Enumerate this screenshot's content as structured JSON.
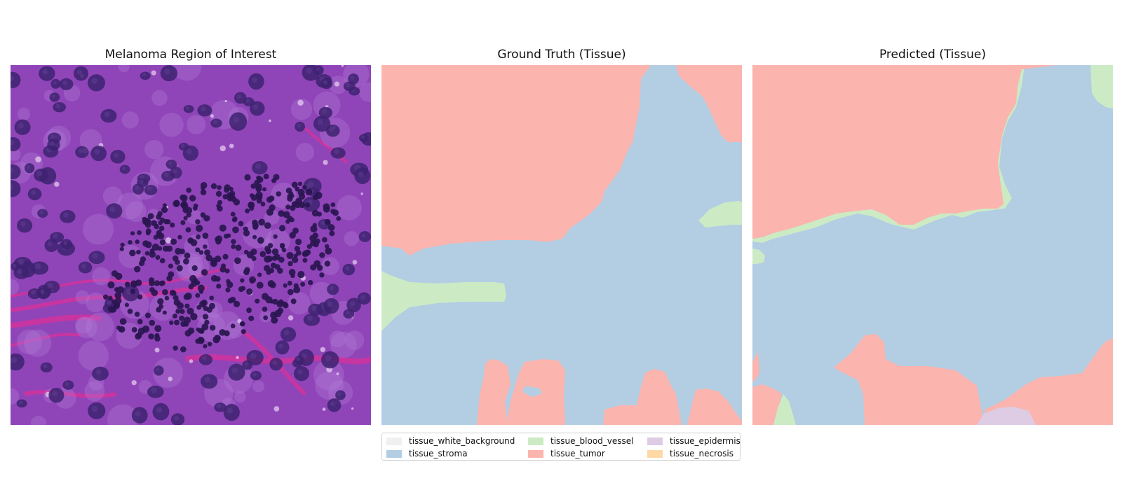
{
  "panels": {
    "roi": {
      "title": "Melanoma Region of Interest"
    },
    "ground_truth": {
      "title": "Ground Truth (Tissue)"
    },
    "predicted": {
      "title": "Predicted (Tissue)"
    }
  },
  "legend": {
    "items": [
      {
        "label": "tissue_white_background",
        "color": "#f0f0f0"
      },
      {
        "label": "tissue_blood_vessel",
        "color": "#ccebc5"
      },
      {
        "label": "tissue_epidermis",
        "color": "#decbe4"
      },
      {
        "label": "tissue_stroma",
        "color": "#b3cde3"
      },
      {
        "label": "tissue_tumor",
        "color": "#fbb4ae"
      },
      {
        "label": "tissue_necrosis",
        "color": "#fed9a6"
      }
    ]
  },
  "colors": {
    "stroma": "#b3cde3",
    "tumor": "#fbb4ae",
    "blood_vessel": "#ccebc5",
    "epidermis": "#decbe4",
    "histology_base": "#8a3fb0",
    "nucleus": "#3d2270",
    "lymphocyte": "#2a1650",
    "collagen": "#d9309a"
  }
}
